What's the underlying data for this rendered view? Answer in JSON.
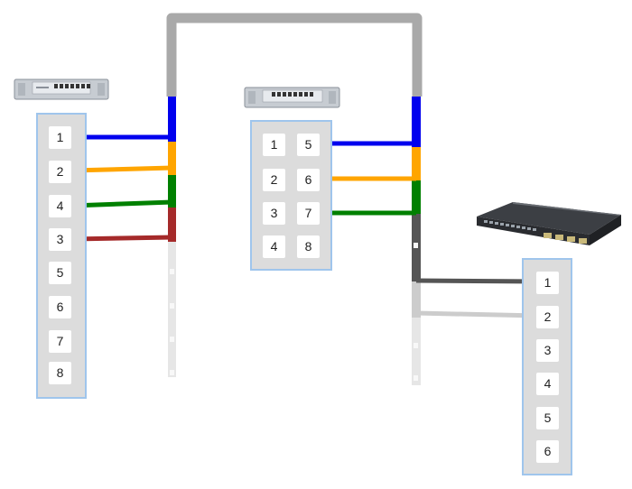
{
  "colors": {
    "trunk": "#a9a9a9",
    "pair1": "#0000ee",
    "pair2": "#ffa500",
    "pair3": "#008000",
    "pair4": "#a52a2a",
    "switch_wire_1": "#555555",
    "switch_wire_2": "#cccccc",
    "unused": "#e6e6e6",
    "panel_border": "#9fc5ec",
    "panel_fill": "#dcdcdc"
  },
  "devices": {
    "left_patch_panel_icon": "patch-panel-icon",
    "mid_patch_panel_icon": "patch-panel-icon",
    "switch_icon": "network-switch-icon"
  },
  "left_panel": {
    "ports": [
      "1",
      "2",
      "4",
      "3",
      "5",
      "6",
      "7",
      "8"
    ]
  },
  "mid_panel": {
    "ports_col1": [
      "1",
      "2",
      "3",
      "4"
    ],
    "ports_col2": [
      "5",
      "6",
      "7",
      "8"
    ]
  },
  "right_panel": {
    "ports": [
      "1",
      "2",
      "3",
      "4",
      "5",
      "6"
    ]
  }
}
